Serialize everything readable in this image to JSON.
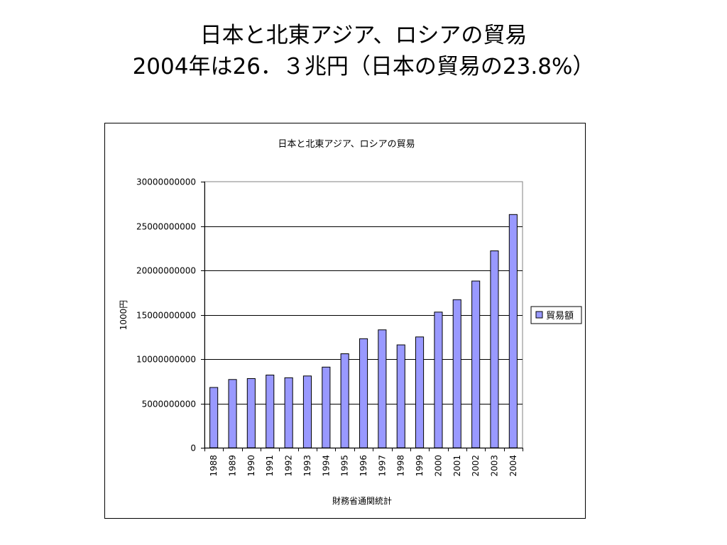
{
  "slide": {
    "title_line1": "日本と北東アジア、ロシアの貿易",
    "title_line2": "2004年は26．３兆円（日本の貿易の23.8%）"
  },
  "chart_data": {
    "type": "bar",
    "title": "日本と北東アジア、ロシアの貿易",
    "categories": [
      "1988",
      "1989",
      "1990",
      "1991",
      "1992",
      "1993",
      "1994",
      "1995",
      "1996",
      "1997",
      "1998",
      "1999",
      "2000",
      "2001",
      "2002",
      "2003",
      "2004"
    ],
    "series": [
      {
        "name": "貿易額",
        "color": "#9999ff",
        "values": [
          6800000000,
          7700000000,
          7800000000,
          8200000000,
          7900000000,
          8100000000,
          9100000000,
          10600000000,
          12300000000,
          13300000000,
          11600000000,
          12500000000,
          15300000000,
          16700000000,
          18800000000,
          22200000000,
          26300000000
        ]
      }
    ],
    "ylabel": "1000円",
    "xlabel": "財務省通関統計",
    "ylim": [
      0,
      30000000000
    ],
    "yticks": [
      "0",
      "5000000000",
      "10000000000",
      "15000000000",
      "20000000000",
      "25000000000",
      "30000000000"
    ],
    "grid": true,
    "legend": "right"
  }
}
